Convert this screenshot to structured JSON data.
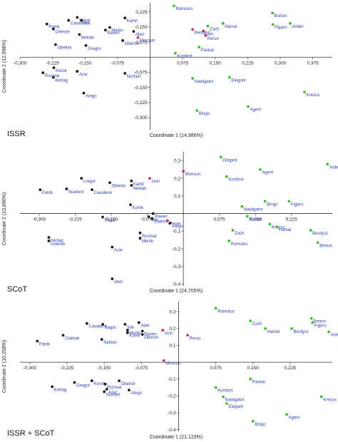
{
  "colors": {
    "groupA": "#1a1a1a",
    "groupB": "#3bbf2a",
    "groupC": "#cc2e6a",
    "labels": "#2d3fb0"
  },
  "chart_data": [
    {
      "type": "scatter",
      "title": "ISSR",
      "xlabel": "Coordinate 1 (14,986%)",
      "ylabel": "Coordinate 2 (12,998%)",
      "xlim": [
        -0.3,
        0.42
      ],
      "ylim": [
        -0.36,
        0.27
      ],
      "xticks": [
        -0.3,
        -0.225,
        -0.15,
        -0.075,
        0.075,
        0.15,
        0.225,
        0.3,
        0.375
      ],
      "xticklabels": [
        "-0,300",
        "-0,225",
        "-0,150",
        "-0,075",
        "0,075",
        "0,150",
        "0,225",
        "0,300",
        "0,375"
      ],
      "yticks": [
        -0.3,
        -0.225,
        -0.15,
        -0.075,
        0.075,
        0.15,
        0.225
      ],
      "yticklabels": [
        "-0,300",
        "-0,225",
        "-0,150",
        "-0,075",
        "0,075",
        "0,150",
        "0,225"
      ],
      "grid": false,
      "points": [
        {
          "name": "Romulus",
          "x": 0.055,
          "y": 0.255,
          "group": "B"
        },
        {
          "name": "Sagar",
          "x": -0.168,
          "y": 0.198,
          "group": "A"
        },
        {
          "name": "Cavaliere",
          "x": -0.188,
          "y": 0.183,
          "group": "A"
        },
        {
          "name": "Vok",
          "x": -0.158,
          "y": 0.183,
          "group": "A"
        },
        {
          "name": "Patrik",
          "x": -0.238,
          "y": 0.165,
          "group": "A"
        },
        {
          "name": "Celeste",
          "x": -0.223,
          "y": 0.14,
          "group": "A"
        },
        {
          "name": "Kamil",
          "x": -0.058,
          "y": 0.195,
          "group": "A"
        },
        {
          "name": "Merlin",
          "x": -0.093,
          "y": 0.148,
          "group": "A"
        },
        {
          "name": "Raven",
          "x": -0.103,
          "y": 0.135,
          "group": "A"
        },
        {
          "name": "Abel",
          "x": -0.038,
          "y": 0.128,
          "group": "A"
        },
        {
          "name": "Neklan",
          "x": -0.163,
          "y": 0.113,
          "group": "A"
        },
        {
          "name": "Monsun",
          "x": -0.028,
          "y": 0.098,
          "group": "C"
        },
        {
          "name": "Oberon",
          "x": -0.063,
          "y": 0.083,
          "group": "A"
        },
        {
          "name": "Obelisk",
          "x": -0.218,
          "y": 0.063,
          "group": "A"
        },
        {
          "name": "Gregor",
          "x": -0.148,
          "y": 0.058,
          "group": "A"
        },
        {
          "name": "Breton",
          "x": 0.282,
          "y": 0.22,
          "group": "B"
        },
        {
          "name": "Hamal",
          "x": 0.168,
          "y": 0.168,
          "group": "B"
        },
        {
          "name": "Figaro",
          "x": 0.283,
          "y": 0.163,
          "group": "B"
        },
        {
          "name": "Arden",
          "x": 0.323,
          "y": 0.168,
          "group": "B"
        },
        {
          "name": "Zuch",
          "x": 0.133,
          "y": 0.155,
          "group": "B"
        },
        {
          "name": "Lion",
          "x": 0.123,
          "y": 0.13,
          "group": "C"
        },
        {
          "name": "Berdysz",
          "x": 0.098,
          "y": 0.138,
          "group": "C"
        },
        {
          "name": "Perun",
          "x": 0.128,
          "y": 0.108,
          "group": "C"
        },
        {
          "name": "Paskal",
          "x": 0.113,
          "y": 0.05,
          "group": "B"
        },
        {
          "name": "Korok",
          "x": -0.222,
          "y": -0.052,
          "group": "A"
        },
        {
          "name": "Rozmar",
          "x": -0.247,
          "y": -0.077,
          "group": "A"
        },
        {
          "name": "Azar",
          "x": -0.168,
          "y": -0.07,
          "group": "A"
        },
        {
          "name": "Kertag",
          "x": -0.223,
          "y": -0.1,
          "group": "A"
        },
        {
          "name": "Norbert",
          "x": -0.058,
          "y": -0.08,
          "group": "A"
        },
        {
          "name": "Komfort",
          "x": 0.058,
          "y": 0.02,
          "group": "B"
        },
        {
          "name": "Elegant",
          "x": 0.183,
          "y": -0.1,
          "group": "B"
        },
        {
          "name": "Nawigator",
          "x": 0.098,
          "y": -0.105,
          "group": "B"
        },
        {
          "name": "Atego",
          "x": -0.153,
          "y": -0.178,
          "group": "A"
        },
        {
          "name": "Krezus",
          "x": 0.356,
          "y": -0.173,
          "group": "B"
        },
        {
          "name": "Agent",
          "x": 0.226,
          "y": -0.245,
          "group": "B"
        },
        {
          "name": "Bingo",
          "x": 0.108,
          "y": -0.265,
          "group": "B"
        }
      ]
    },
    {
      "type": "scatter",
      "title": "SCoT",
      "xlabel": "Coordinate 1 (24,705%)",
      "ylabel": "Coordinate 2 (13,890%)",
      "xlim": [
        -0.34,
        0.31
      ],
      "ylim": [
        -0.41,
        0.35
      ],
      "xticks": [
        -0.3,
        -0.225,
        -0.15,
        -0.075,
        0.075,
        0.15,
        0.225
      ],
      "xticklabels": [
        "-0,300",
        "-0,225",
        "-0,150",
        "-0,075",
        "0,075",
        "0,150",
        "0,225"
      ],
      "yticks": [
        -0.4,
        -0.3,
        -0.2,
        -0.1,
        0.1,
        0.2,
        0.3
      ],
      "yticklabels": [
        "-0,4",
        "-0,3",
        "-0,2",
        "-0,1",
        "0,1",
        "0,2",
        "0,3"
      ],
      "grid": false,
      "points": [
        {
          "name": "Elegant",
          "x": 0.078,
          "y": 0.32,
          "group": "B"
        },
        {
          "name": "Arden",
          "x": 0.3,
          "y": 0.28,
          "group": "B"
        },
        {
          "name": "Agent",
          "x": 0.16,
          "y": 0.25,
          "group": "B"
        },
        {
          "name": "Monsun",
          "x": 0.0,
          "y": 0.24,
          "group": "C"
        },
        {
          "name": "Komfort",
          "x": 0.09,
          "y": 0.21,
          "group": "B"
        },
        {
          "name": "Lregor",
          "x": -0.212,
          "y": 0.2,
          "group": "A"
        },
        {
          "name": "Kamil",
          "x": -0.108,
          "y": 0.185,
          "group": "A"
        },
        {
          "name": "Lion",
          "x": -0.07,
          "y": 0.2,
          "group": "C"
        },
        {
          "name": "Oberon",
          "x": -0.153,
          "y": 0.175,
          "group": "A"
        },
        {
          "name": "Neklan",
          "x": -0.108,
          "y": 0.16,
          "group": "A"
        },
        {
          "name": "Patrik",
          "x": -0.298,
          "y": 0.135,
          "group": "A"
        },
        {
          "name": "Noebert",
          "x": -0.243,
          "y": 0.14,
          "group": "A"
        },
        {
          "name": "Cavaliere",
          "x": -0.19,
          "y": 0.135,
          "group": "A"
        },
        {
          "name": "Bingo",
          "x": 0.17,
          "y": 0.07,
          "group": "B"
        },
        {
          "name": "Figaro",
          "x": 0.22,
          "y": 0.07,
          "group": "B"
        },
        {
          "name": "Korok",
          "x": -0.11,
          "y": 0.05,
          "group": "A"
        },
        {
          "name": "Nawigator",
          "x": 0.122,
          "y": 0.04,
          "group": "B"
        },
        {
          "name": "Raven",
          "x": -0.063,
          "y": 0.0,
          "group": "A"
        },
        {
          "name": "Sagar",
          "x": -0.168,
          "y": -0.02,
          "group": "A"
        },
        {
          "name": "Vok",
          "x": -0.072,
          "y": -0.018,
          "group": "A"
        },
        {
          "name": "Obelisk",
          "x": -0.065,
          "y": -0.028,
          "group": "A"
        },
        {
          "name": "Paskal",
          "x": 0.133,
          "y": -0.015,
          "group": "B"
        },
        {
          "name": "Perun",
          "x": -0.033,
          "y": -0.04,
          "group": "C"
        },
        {
          "name": "Atego",
          "x": -0.028,
          "y": -0.055,
          "group": "A"
        },
        {
          "name": "Krezus",
          "x": 0.18,
          "y": -0.06,
          "group": "B"
        },
        {
          "name": "Hamal",
          "x": 0.195,
          "y": -0.075,
          "group": "B"
        },
        {
          "name": "Rozmar",
          "x": -0.09,
          "y": -0.11,
          "group": "A"
        },
        {
          "name": "Zuch",
          "x": 0.103,
          "y": -0.095,
          "group": "B"
        },
        {
          "name": "Berdysz",
          "x": 0.265,
          "y": -0.095,
          "group": "B"
        },
        {
          "name": "Merlin",
          "x": -0.09,
          "y": -0.14,
          "group": "A"
        },
        {
          "name": "Kertag",
          "x": -0.28,
          "y": -0.135,
          "group": "A"
        },
        {
          "name": "Celeste",
          "x": -0.28,
          "y": -0.155,
          "group": "A"
        },
        {
          "name": "Romulus",
          "x": 0.095,
          "y": -0.155,
          "group": "B"
        },
        {
          "name": "Breton",
          "x": 0.28,
          "y": -0.165,
          "group": "B"
        },
        {
          "name": "Azar",
          "x": -0.148,
          "y": -0.19,
          "group": "A"
        },
        {
          "name": "Abel",
          "x": -0.148,
          "y": -0.37,
          "group": "A"
        }
      ]
    },
    {
      "type": "scatter",
      "title": "ISSR + SCoT",
      "xlabel": "Coordinate 1 (21,123%)",
      "ylabel": "Coordinate 2 (10,258%)",
      "xlim": [
        -0.32,
        0.31
      ],
      "ylim": [
        -0.41,
        0.36
      ],
      "xticks": [
        -0.3,
        -0.225,
        -0.15,
        -0.075,
        0.075,
        0.15,
        0.225
      ],
      "xticklabels": [
        "-0,300",
        "-0,225",
        "-0,150",
        "-0,075",
        "0,075",
        "0,150",
        "0,225"
      ],
      "yticks": [
        -0.4,
        -0.3,
        -0.2,
        -0.1,
        0.1,
        0.2,
        0.3
      ],
      "yticklabels": [
        "-0,4",
        "-0,3",
        "-0,2",
        "-0,1",
        "0,1",
        "0,2",
        "0,3"
      ],
      "grid": false,
      "points": [
        {
          "name": "Romulus",
          "x": 0.075,
          "y": 0.32,
          "group": "B"
        },
        {
          "name": "Breton",
          "x": 0.268,
          "y": 0.26,
          "group": "B"
        },
        {
          "name": "Figaro",
          "x": 0.27,
          "y": 0.235,
          "group": "B"
        },
        {
          "name": "Zuch",
          "x": 0.145,
          "y": 0.245,
          "group": "B"
        },
        {
          "name": "Hamal",
          "x": 0.175,
          "y": 0.2,
          "group": "B"
        },
        {
          "name": "Berdysz",
          "x": 0.228,
          "y": 0.2,
          "group": "B"
        },
        {
          "name": "Arden",
          "x": 0.303,
          "y": 0.18,
          "group": "B"
        },
        {
          "name": "Cavaliere",
          "x": -0.185,
          "y": 0.23,
          "group": "A"
        },
        {
          "name": "Sagar",
          "x": -0.153,
          "y": 0.225,
          "group": "A"
        },
        {
          "name": "Vok",
          "x": -0.108,
          "y": 0.225,
          "group": "A"
        },
        {
          "name": "Abel",
          "x": -0.08,
          "y": 0.235,
          "group": "A"
        },
        {
          "name": "Merlin",
          "x": -0.103,
          "y": 0.19,
          "group": "A"
        },
        {
          "name": "Raven",
          "x": -0.073,
          "y": 0.185,
          "group": "A"
        },
        {
          "name": "Kamil",
          "x": -0.103,
          "y": 0.175,
          "group": "A"
        },
        {
          "name": "Oberon",
          "x": -0.073,
          "y": 0.165,
          "group": "A"
        },
        {
          "name": "Lion",
          "x": -0.032,
          "y": 0.19,
          "group": "C"
        },
        {
          "name": "Perun",
          "x": 0.018,
          "y": 0.16,
          "group": "C"
        },
        {
          "name": "Celeste",
          "x": -0.233,
          "y": 0.16,
          "group": "A"
        },
        {
          "name": "Neklan",
          "x": -0.155,
          "y": 0.135,
          "group": "A"
        },
        {
          "name": "Patrik",
          "x": -0.285,
          "y": 0.125,
          "group": "A"
        },
        {
          "name": "Monsun",
          "x": -0.03,
          "y": 0.01,
          "group": "C"
        },
        {
          "name": "Paskal",
          "x": 0.145,
          "y": -0.1,
          "group": "B"
        },
        {
          "name": "Komfort",
          "x": 0.075,
          "y": -0.15,
          "group": "B"
        },
        {
          "name": "Korok",
          "x": -0.175,
          "y": -0.11,
          "group": "A"
        },
        {
          "name": "Gregor",
          "x": -0.21,
          "y": -0.12,
          "group": "A"
        },
        {
          "name": "Obelisk",
          "x": -0.12,
          "y": -0.11,
          "group": "A"
        },
        {
          "name": "Rozmar",
          "x": -0.148,
          "y": -0.13,
          "group": "A"
        },
        {
          "name": "Kertag",
          "x": -0.255,
          "y": -0.145,
          "group": "A"
        },
        {
          "name": "Azar",
          "x": -0.145,
          "y": -0.16,
          "group": "A"
        },
        {
          "name": "Norbert",
          "x": -0.15,
          "y": -0.175,
          "group": "A"
        },
        {
          "name": "Atego",
          "x": -0.1,
          "y": -0.165,
          "group": "A"
        },
        {
          "name": "Nawigator",
          "x": 0.09,
          "y": -0.205,
          "group": "B"
        },
        {
          "name": "Krezus",
          "x": 0.288,
          "y": -0.205,
          "group": "B"
        },
        {
          "name": "Elegant",
          "x": 0.097,
          "y": -0.245,
          "group": "B"
        },
        {
          "name": "Agent",
          "x": 0.218,
          "y": -0.31,
          "group": "B"
        },
        {
          "name": "Bingo",
          "x": 0.15,
          "y": -0.35,
          "group": "B"
        }
      ]
    }
  ]
}
